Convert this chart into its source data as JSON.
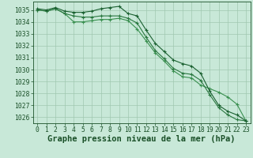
{
  "title": "Graphe pression niveau de la mer (hPa)",
  "bg_color": "#c8e8d8",
  "grid_color": "#a0c8b0",
  "line_color1": "#1a6030",
  "line_color2": "#2a7840",
  "line_color3": "#3a9050",
  "xlim": [
    -0.5,
    23.5
  ],
  "ylim": [
    1025.5,
    1035.7
  ],
  "yticks": [
    1026,
    1027,
    1028,
    1029,
    1030,
    1031,
    1032,
    1033,
    1034,
    1035
  ],
  "xticks": [
    0,
    1,
    2,
    3,
    4,
    5,
    6,
    7,
    8,
    9,
    10,
    11,
    12,
    13,
    14,
    15,
    16,
    17,
    18,
    19,
    20,
    21,
    22,
    23
  ],
  "series1": [
    1035.1,
    1035.0,
    1035.2,
    1034.9,
    1034.8,
    1034.8,
    1034.9,
    1035.1,
    1035.2,
    1035.3,
    1034.7,
    1034.5,
    1033.3,
    1032.2,
    1031.5,
    1030.8,
    1030.5,
    1030.3,
    1029.7,
    1028.2,
    1027.0,
    1026.5,
    1026.2,
    1025.7
  ],
  "series2": [
    1035.0,
    1034.9,
    1035.1,
    1034.7,
    1034.5,
    1034.4,
    1034.4,
    1034.5,
    1034.5,
    1034.5,
    1034.3,
    1033.9,
    1032.7,
    1031.6,
    1030.9,
    1030.1,
    1029.7,
    1029.6,
    1029.1,
    1027.9,
    1026.8,
    1026.2,
    1025.8,
    1025.7
  ],
  "series3": [
    1035.0,
    1034.9,
    1035.1,
    1034.7,
    1034.0,
    1034.0,
    1034.1,
    1034.2,
    1034.2,
    1034.3,
    1034.1,
    1033.4,
    1032.4,
    1031.4,
    1030.7,
    1029.9,
    1029.4,
    1029.3,
    1028.7,
    1028.4,
    1028.1,
    1027.7,
    1027.1,
    1025.7
  ],
  "title_fontsize": 7.5,
  "tick_fontsize": 5.8,
  "tick_color": "#1a5028"
}
